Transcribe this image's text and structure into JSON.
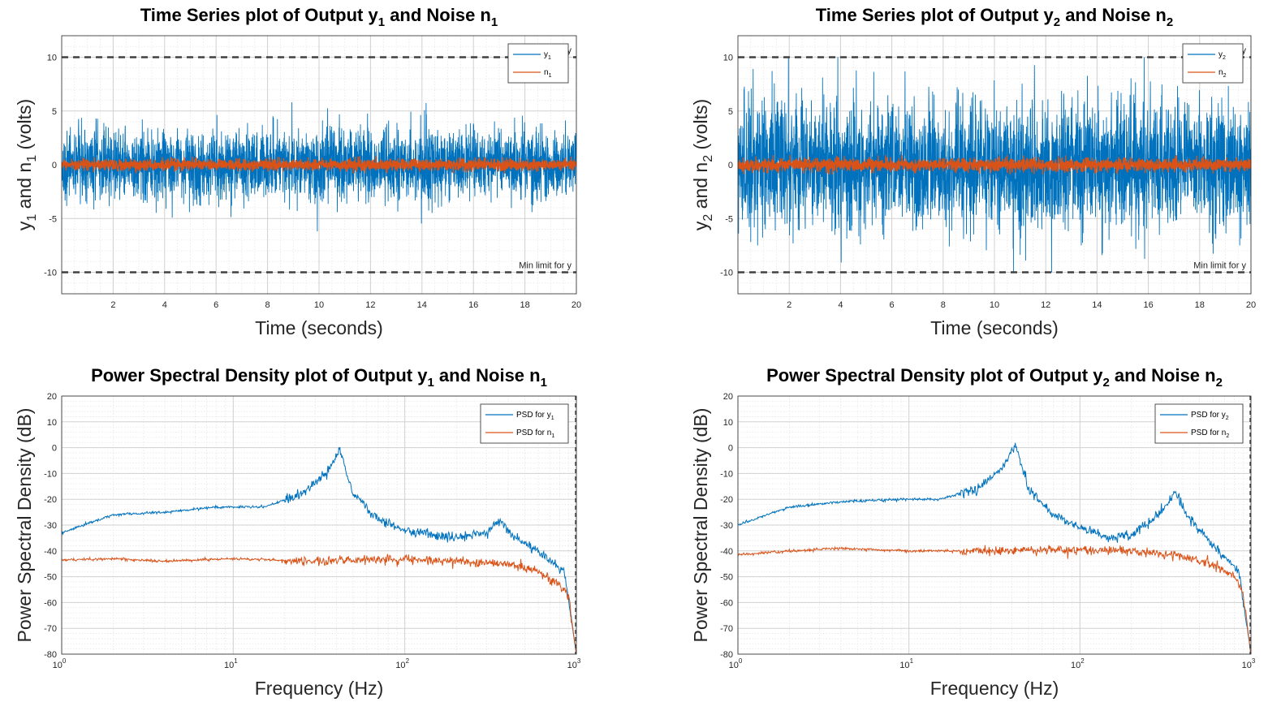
{
  "colors": {
    "y": "#0072BD",
    "n": "#D95319",
    "limit": "#404040",
    "grid": "#dcdcdc",
    "axis": "#262626"
  },
  "chart_data": [
    {
      "type": "line",
      "title": {
        "main": "Time Series plot of Output y",
        "s1": "1",
        "mid": " and Noise n",
        "s2": "1"
      },
      "xlabel": "Time (seconds)",
      "ylabel": {
        "a": "y",
        "s1": "1",
        "b": " and n",
        "s2": "1",
        "c": " (volts)"
      },
      "xlim": [
        0,
        20
      ],
      "ylim": [
        -12,
        12
      ],
      "xticks": [
        2,
        4,
        6,
        8,
        10,
        12,
        14,
        16,
        18,
        20
      ],
      "yticks": [
        -10,
        -5,
        0,
        5,
        10
      ],
      "legend": {
        "position": "top-right",
        "items": [
          {
            "base": "y",
            "sub": "1"
          },
          {
            "base": "n",
            "sub": "1"
          }
        ]
      },
      "limits": {
        "max": 10,
        "min": -10,
        "max_label": "Max limit for y",
        "min_label": "Min limit for y"
      },
      "series": [
        {
          "name": "y1",
          "kind": "noise",
          "std": 1.35,
          "min": -8.2,
          "max": 8.1,
          "color_key": "y"
        },
        {
          "name": "n1",
          "kind": "noise",
          "std": 0.22,
          "min": -0.8,
          "max": 0.8,
          "color_key": "n"
        }
      ]
    },
    {
      "type": "line",
      "title": {
        "main": "Time Series plot of Output y",
        "s1": "2",
        "mid": " and Noise n",
        "s2": "2"
      },
      "xlabel": "Time (seconds)",
      "ylabel": {
        "a": "y",
        "s1": "2",
        "b": " and n",
        "s2": "2",
        "c": " (volts)"
      },
      "xlim": [
        0,
        20
      ],
      "ylim": [
        -12,
        12
      ],
      "xticks": [
        2,
        4,
        6,
        8,
        10,
        12,
        14,
        16,
        18,
        20
      ],
      "yticks": [
        -10,
        -5,
        0,
        5,
        10
      ],
      "legend": {
        "position": "top-right",
        "items": [
          {
            "base": "y",
            "sub": "2"
          },
          {
            "base": "n",
            "sub": "2"
          }
        ]
      },
      "limits": {
        "max": 10,
        "min": -10,
        "max_label": "Max limit for y",
        "min_label": "Min limit for y"
      },
      "series": [
        {
          "name": "y2",
          "kind": "noise",
          "std": 2.4,
          "min": -10,
          "max": 10,
          "color_key": "y"
        },
        {
          "name": "n2",
          "kind": "noise",
          "std": 0.25,
          "min": -0.9,
          "max": 0.9,
          "color_key": "n"
        }
      ]
    },
    {
      "type": "line",
      "title": {
        "main": "Power Spectral Density plot of Output y",
        "s1": "1",
        "mid": " and Noise n",
        "s2": "1"
      },
      "xlabel": "Frequency (Hz)",
      "ylabel": {
        "a": "Power Spectral Density (dB)"
      },
      "xscale": "log",
      "xlim": [
        1,
        1000
      ],
      "ylim": [
        -80,
        20
      ],
      "xticks": [
        {
          "base": "10",
          "exp": "0"
        },
        {
          "base": "10",
          "exp": "1"
        },
        {
          "base": "10",
          "exp": "2"
        },
        {
          "base": "10",
          "exp": "3"
        }
      ],
      "yticks": [
        -80,
        -70,
        -60,
        -50,
        -40,
        -30,
        -20,
        -10,
        0,
        10,
        20
      ],
      "legend": {
        "position": "top-right",
        "items": [
          {
            "base": "PSD for y",
            "sub": "1"
          },
          {
            "base": "PSD for n",
            "sub": "1"
          }
        ]
      },
      "series": [
        {
          "name": "PSD y1",
          "color_key": "y",
          "x": [
            1,
            2,
            4,
            8,
            15,
            25,
            35,
            42,
            50,
            70,
            100,
            200,
            300,
            360,
            420,
            600,
            850,
            1000
          ],
          "y": [
            -33,
            -26,
            -25,
            -23,
            -23,
            -18,
            -10,
            -1,
            -18,
            -28,
            -32,
            -35,
            -33,
            -28,
            -34,
            -40,
            -48,
            -80
          ]
        },
        {
          "name": "PSD n1",
          "color_key": "n",
          "x": [
            1,
            2,
            4,
            10,
            30,
            100,
            200,
            400,
            600,
            800,
            900,
            1000
          ],
          "y": [
            -43.5,
            -43,
            -44,
            -43,
            -44,
            -43,
            -44,
            -45,
            -48,
            -53,
            -58,
            -80
          ]
        }
      ]
    },
    {
      "type": "line",
      "title": {
        "main": "Power Spectral Density plot of Output y",
        "s1": "2",
        "mid": " and Noise n",
        "s2": "2"
      },
      "xlabel": "Frequency (Hz)",
      "ylabel": {
        "a": "Power Spectral Density (dB)"
      },
      "xscale": "log",
      "xlim": [
        1,
        1000
      ],
      "ylim": [
        -80,
        20
      ],
      "xticks": [
        {
          "base": "10",
          "exp": "0"
        },
        {
          "base": "10",
          "exp": "1"
        },
        {
          "base": "10",
          "exp": "2"
        },
        {
          "base": "10",
          "exp": "3"
        }
      ],
      "yticks": [
        -80,
        -70,
        -60,
        -50,
        -40,
        -30,
        -20,
        -10,
        0,
        10,
        20
      ],
      "legend": {
        "position": "top-right",
        "items": [
          {
            "base": "PSD for y",
            "sub": "2"
          },
          {
            "base": "PSD for n",
            "sub": "2"
          }
        ]
      },
      "series": [
        {
          "name": "PSD y2",
          "color_key": "y",
          "x": [
            1,
            2,
            4,
            8,
            15,
            25,
            35,
            42,
            50,
            70,
            100,
            150,
            200,
            300,
            360,
            420,
            600,
            850,
            1000
          ],
          "y": [
            -30,
            -23,
            -21,
            -20,
            -20,
            -16,
            -8,
            1,
            -16,
            -26,
            -31,
            -35,
            -34,
            -25,
            -17,
            -26,
            -38,
            -48,
            -80
          ]
        },
        {
          "name": "PSD n2",
          "color_key": "n",
          "x": [
            1,
            2,
            4,
            10,
            30,
            100,
            200,
            400,
            600,
            800,
            900,
            1000
          ],
          "y": [
            -41.5,
            -40,
            -39,
            -40,
            -40,
            -39.5,
            -40,
            -42,
            -45,
            -50,
            -56,
            -80
          ]
        }
      ]
    }
  ]
}
